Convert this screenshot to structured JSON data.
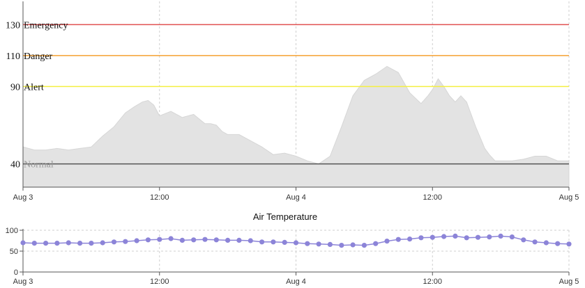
{
  "chart_data": [
    {
      "type": "area",
      "xlim": [
        "Aug 3 00:00",
        "Aug 5 00:00"
      ],
      "ylim": [
        25,
        145
      ],
      "x_ticks": [
        "Aug 3",
        "12:00",
        "Aug 4",
        "12:00",
        "Aug 5"
      ],
      "x_tick_hours": [
        0,
        12,
        24,
        36,
        48
      ],
      "x_grid_hours": [
        12,
        24,
        36,
        48
      ],
      "grid": true,
      "thresholds": [
        {
          "value": 130,
          "value_label": "130",
          "name": "Emergency",
          "color": "#e05050"
        },
        {
          "value": 110,
          "value_label": "110",
          "name": "Danger",
          "color": "#f5a030"
        },
        {
          "value": 90,
          "value_label": "90",
          "name": "Alert",
          "color": "#f4ef40"
        },
        {
          "value": 40,
          "value_label": "40",
          "name": "Normal",
          "color": "#555555"
        }
      ],
      "fill_color": "#e3e3e3",
      "series": [
        {
          "x_hours": [
            0,
            1,
            2,
            3,
            4,
            5,
            6,
            7,
            8,
            9,
            9.8,
            10.5,
            11,
            11.5,
            12,
            13,
            13.5,
            14,
            15,
            15.5,
            16,
            16.5,
            17,
            17.5,
            18,
            19,
            20,
            21,
            22,
            23,
            24,
            25,
            26,
            27,
            28,
            29,
            30,
            31,
            32,
            33,
            34,
            35,
            35.6,
            36,
            36.5,
            37,
            37.5,
            38,
            38.5,
            39,
            39.4,
            39.8,
            40.2,
            40.6,
            41,
            41.5,
            42,
            43,
            44,
            45,
            46,
            47,
            48
          ],
          "values": [
            51,
            49,
            49,
            50,
            49,
            50,
            51,
            58,
            64,
            73,
            77,
            80,
            81,
            78,
            71,
            74,
            72,
            70,
            72,
            69,
            66,
            66,
            65,
            61,
            59,
            59,
            55,
            51,
            46,
            47,
            45,
            42,
            40,
            45,
            64,
            84,
            94,
            98,
            103,
            99,
            86,
            79,
            84,
            88,
            95,
            90,
            84,
            80,
            84,
            80,
            72,
            64,
            57,
            50,
            46,
            42,
            42,
            42,
            43,
            45,
            45,
            42,
            42
          ]
        }
      ]
    },
    {
      "type": "line",
      "title": "Air Temperature",
      "xlim": [
        "Aug 3 00:00",
        "Aug 5 00:00"
      ],
      "ylim": [
        0,
        100
      ],
      "y_ticks": [
        0,
        50,
        100
      ],
      "x_ticks": [
        "Aug 3",
        "12:00",
        "Aug 4",
        "12:00",
        "Aug 5"
      ],
      "x_tick_hours": [
        0,
        12,
        24,
        36,
        48
      ],
      "x_grid_hours": [
        12,
        24,
        36,
        48
      ],
      "grid": true,
      "marker_color": "#8c84d8",
      "line_color": "#8c84d8",
      "series": [
        {
          "x_hours": [
            0,
            1,
            2,
            3,
            4,
            5,
            6,
            7,
            8,
            9,
            10,
            11,
            12,
            13,
            14,
            15,
            16,
            17,
            18,
            19,
            20,
            21,
            22,
            23,
            24,
            25,
            26,
            27,
            28,
            29,
            30,
            31,
            32,
            33,
            34,
            35,
            36,
            37,
            38,
            39,
            40,
            41,
            42,
            43,
            44,
            45,
            46,
            47,
            48
          ],
          "values": [
            70,
            69,
            69,
            69,
            70,
            69,
            69,
            70,
            72,
            73,
            75,
            77,
            78,
            80,
            76,
            77,
            78,
            77,
            76,
            76,
            75,
            72,
            72,
            71,
            70,
            68,
            67,
            66,
            64,
            65,
            64,
            68,
            74,
            78,
            79,
            82,
            83,
            85,
            86,
            82,
            83,
            84,
            86,
            84,
            77,
            72,
            70,
            68,
            67
          ]
        }
      ]
    }
  ]
}
